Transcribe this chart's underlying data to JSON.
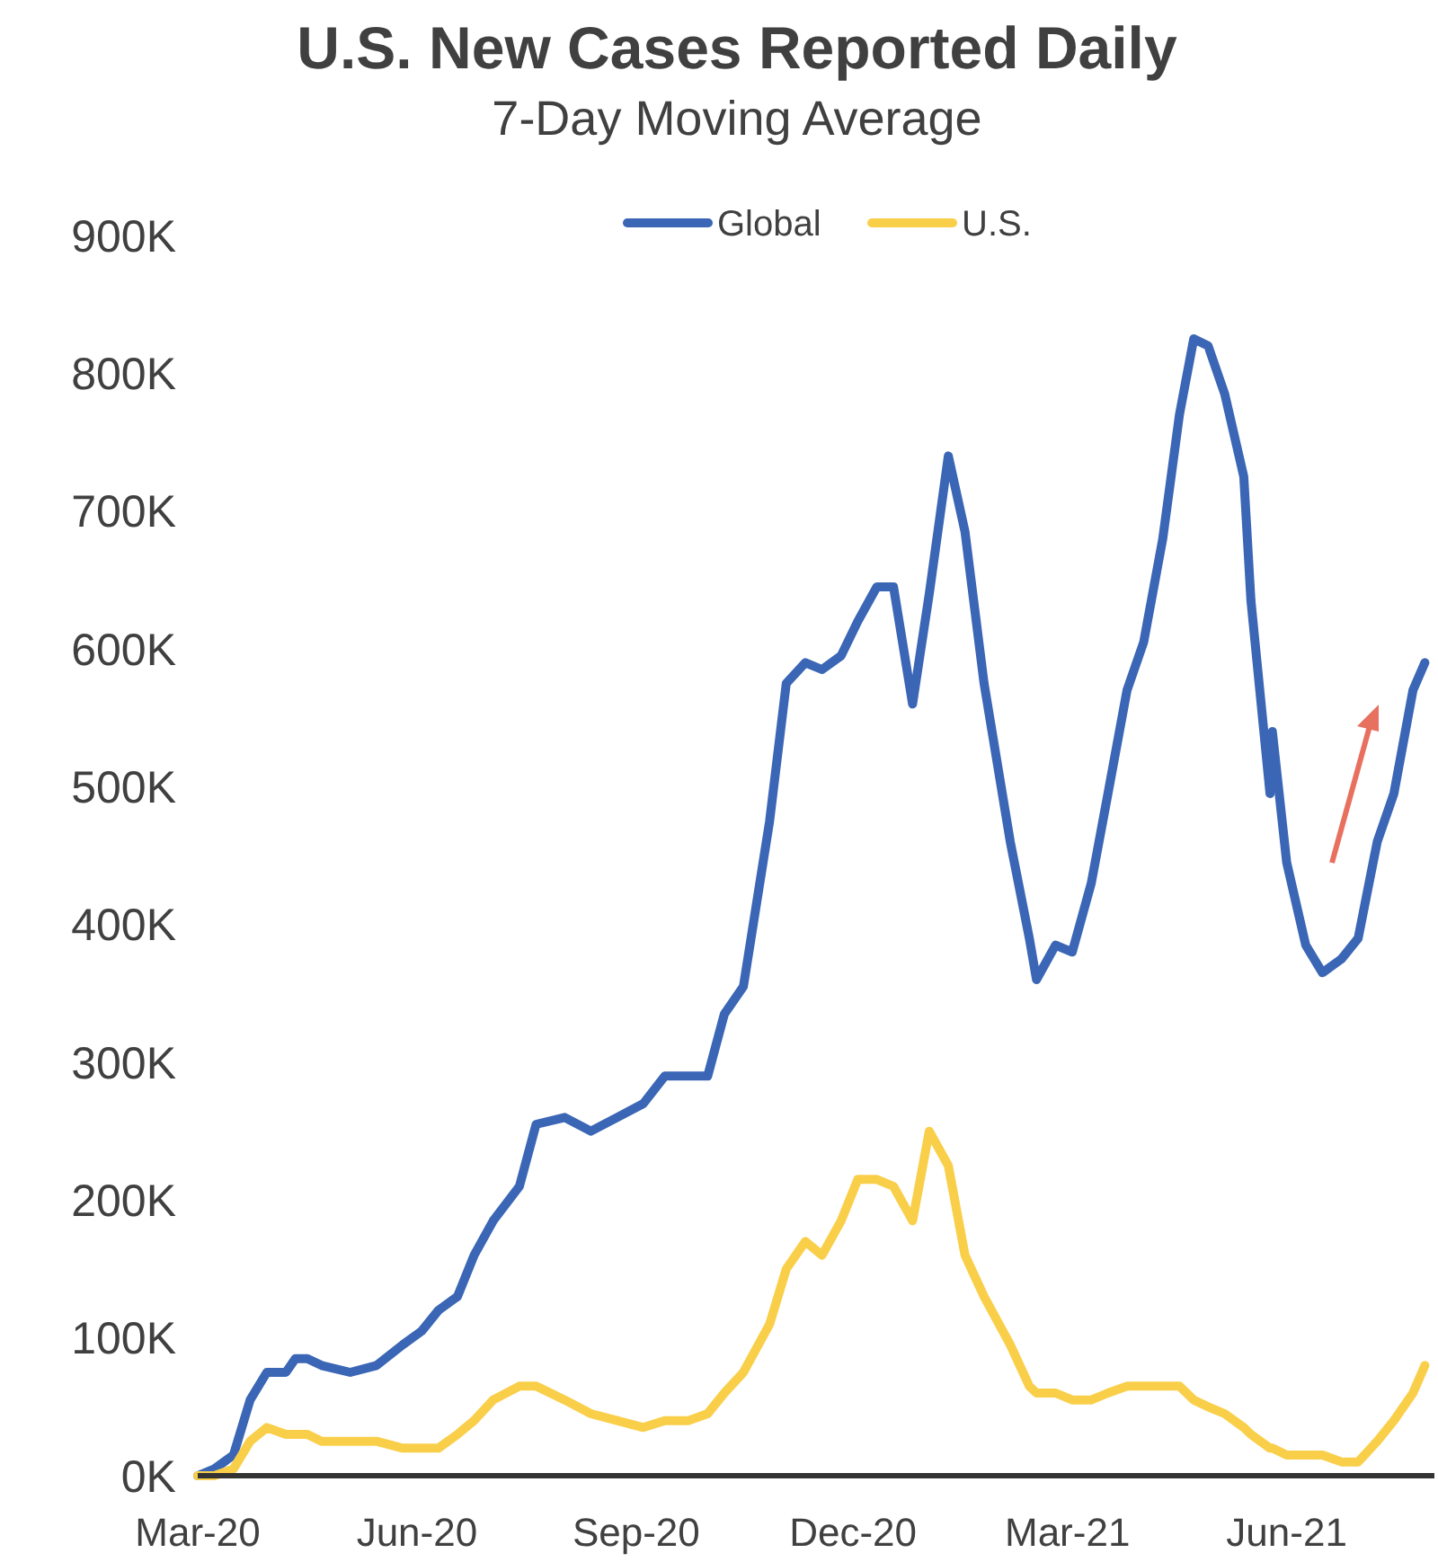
{
  "chart_data": {
    "type": "line",
    "title": "U.S. New Cases Reported Daily",
    "subtitle": "7-Day Moving Average",
    "x": [
      "2020-03-01",
      "2020-03-08",
      "2020-03-16",
      "2020-03-23",
      "2020-03-30",
      "2020-04-07",
      "2020-04-11",
      "2020-04-16",
      "2020-04-22",
      "2020-05-04",
      "2020-05-15",
      "2020-05-26",
      "2020-06-03",
      "2020-06-10",
      "2020-06-18",
      "2020-06-25",
      "2020-07-03",
      "2020-07-14",
      "2020-07-21",
      "2020-08-02",
      "2020-08-13",
      "2020-08-24",
      "2020-09-04",
      "2020-09-13",
      "2020-09-23",
      "2020-10-01",
      "2020-10-08",
      "2020-10-16",
      "2020-10-27",
      "2020-11-03",
      "2020-11-11",
      "2020-11-18",
      "2020-11-26",
      "2020-12-03",
      "2020-12-11",
      "2020-12-18",
      "2020-12-26",
      "2021-01-02",
      "2021-01-10",
      "2021-01-17",
      "2021-01-25",
      "2021-02-05",
      "2021-02-13",
      "2021-02-16",
      "2021-02-24",
      "2021-03-03",
      "2021-03-11",
      "2021-03-18",
      "2021-03-26",
      "2021-04-02",
      "2021-04-10",
      "2021-04-17",
      "2021-04-23",
      "2021-04-29",
      "2021-05-06",
      "2021-05-14",
      "2021-05-17",
      "2021-05-25",
      "2021-05-26",
      "2021-06-01",
      "2021-06-09",
      "2021-06-16",
      "2021-06-24",
      "2021-07-01",
      "2021-07-09",
      "2021-07-16",
      "2021-07-24",
      "2021-07-29"
    ],
    "series": [
      {
        "name": "Global",
        "color": "#3a66b5",
        "values": [
          0,
          5000,
          15000,
          55000,
          75000,
          75000,
          85000,
          85000,
          80000,
          75000,
          80000,
          95000,
          105000,
          120000,
          130000,
          160000,
          185000,
          210000,
          255000,
          260000,
          250000,
          260000,
          270000,
          290000,
          290000,
          290000,
          335000,
          355000,
          475000,
          575000,
          590000,
          585000,
          595000,
          620000,
          645000,
          645000,
          560000,
          640000,
          740000,
          685000,
          575000,
          460000,
          390000,
          360000,
          385000,
          380000,
          430000,
          495000,
          570000,
          605000,
          680000,
          770000,
          825000,
          820000,
          785000,
          725000,
          635000,
          495000,
          540000,
          445000,
          385000,
          365000,
          375000,
          390000,
          460000,
          495000,
          570000,
          590000
        ]
      },
      {
        "name": "U.S.",
        "color": "#f9cf4a",
        "values": [
          0,
          0,
          5000,
          25000,
          35000,
          30000,
          30000,
          30000,
          25000,
          25000,
          25000,
          20000,
          20000,
          20000,
          30000,
          40000,
          55000,
          65000,
          65000,
          55000,
          45000,
          40000,
          35000,
          40000,
          40000,
          45000,
          60000,
          75000,
          110000,
          150000,
          170000,
          160000,
          185000,
          215000,
          215000,
          210000,
          185000,
          250000,
          225000,
          160000,
          130000,
          95000,
          65000,
          60000,
          60000,
          55000,
          55000,
          60000,
          65000,
          65000,
          65000,
          65000,
          55000,
          50000,
          45000,
          35000,
          30000,
          20000,
          20000,
          15000,
          15000,
          15000,
          10000,
          10000,
          25000,
          40000,
          60000,
          80000
        ]
      }
    ],
    "xlim": [
      "2020-03-01",
      "2021-08-02"
    ],
    "xticks": [
      {
        "value": "2020-03-01",
        "label": "Mar-20"
      },
      {
        "value": "2020-06-01",
        "label": "Jun-20"
      },
      {
        "value": "2020-09-01",
        "label": "Sep-20"
      },
      {
        "value": "2020-12-01",
        "label": "Dec-20"
      },
      {
        "value": "2021-03-01",
        "label": "Mar-21"
      },
      {
        "value": "2021-06-01",
        "label": "Jun-21"
      }
    ],
    "ylim": [
      0,
      900000
    ],
    "yticks": [
      {
        "value": 0,
        "label": "0K"
      },
      {
        "value": 100000,
        "label": "100K"
      },
      {
        "value": 200000,
        "label": "200K"
      },
      {
        "value": 300000,
        "label": "300K"
      },
      {
        "value": 400000,
        "label": "400K"
      },
      {
        "value": 500000,
        "label": "500K"
      },
      {
        "value": 600000,
        "label": "600K"
      },
      {
        "value": 700000,
        "label": "700K"
      },
      {
        "value": 800000,
        "label": "800K"
      },
      {
        "value": 900000,
        "label": "900K"
      }
    ],
    "legend": "top",
    "grid": false
  }
}
